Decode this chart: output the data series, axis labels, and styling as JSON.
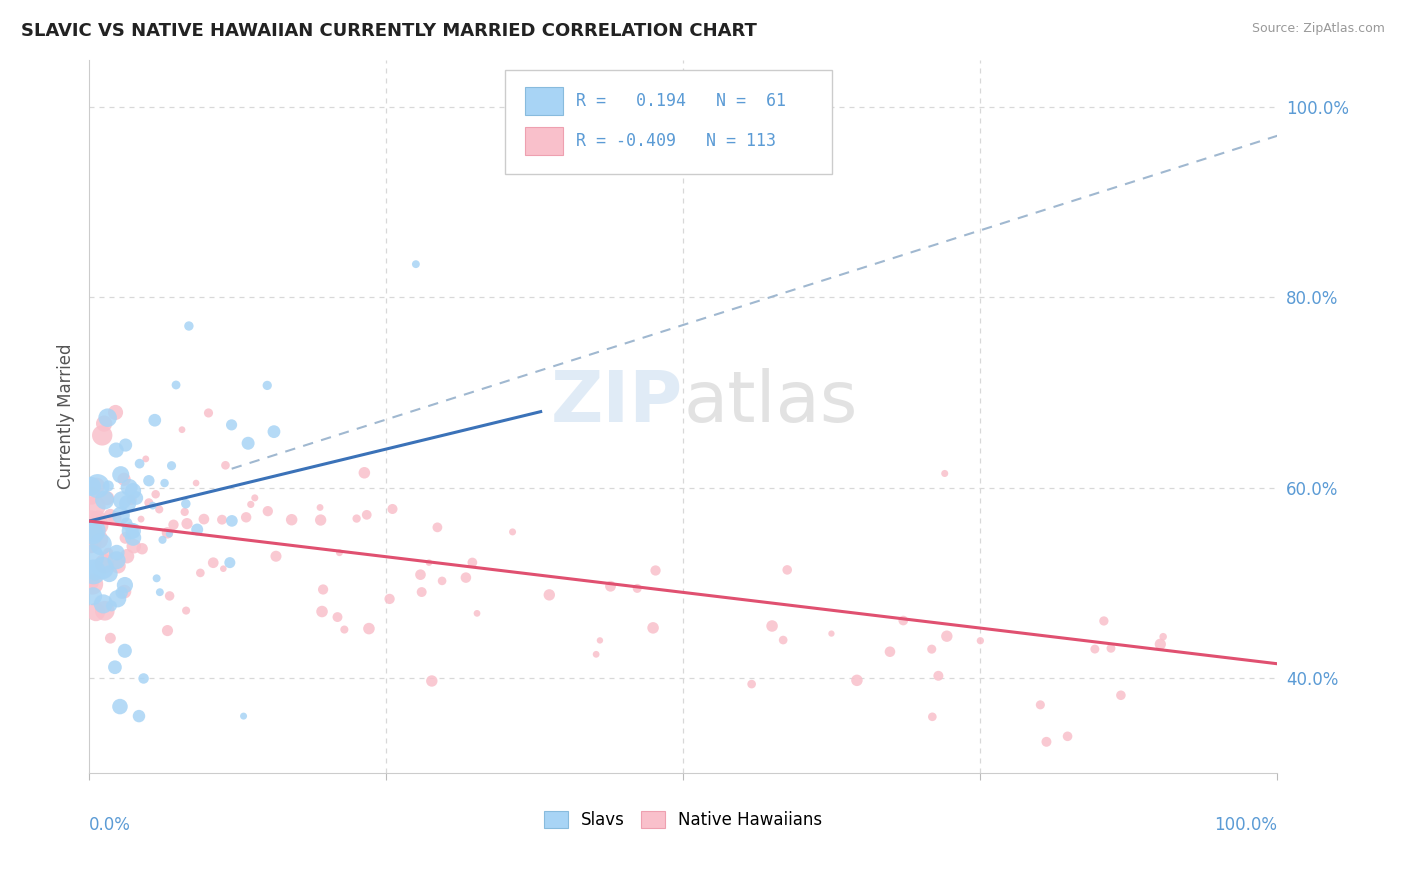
{
  "title": "SLAVIC VS NATIVE HAWAIIAN CURRENTLY MARRIED CORRELATION CHART",
  "source": "Source: ZipAtlas.com",
  "ylabel": "Currently Married",
  "r_slavic": 0.194,
  "n_slavic": 61,
  "r_hawaiian": -0.409,
  "n_hawaiian": 113,
  "color_slavic": "#A8D4F5",
  "color_slavic_edge": "#6EB0E8",
  "color_hawaiian": "#F9C0CB",
  "color_hawaiian_edge": "#F090A8",
  "trendline_slavic_color": "#3B72B8",
  "trendline_hawaiian_color": "#E05070",
  "trendline_dashed_color": "#A0B8D0",
  "background_color": "#FFFFFF",
  "grid_color": "#D8D8D8",
  "xlim": [
    0.0,
    1.0
  ],
  "ylim": [
    0.3,
    1.05
  ],
  "yticks": [
    0.4,
    0.6,
    0.8,
    1.0
  ],
  "ytick_labels": [
    "40.0%",
    "60.0%",
    "80.0%",
    "100.0%"
  ],
  "slavic_trendline_x0": 0.0,
  "slavic_trendline_y0": 0.565,
  "slavic_trendline_x1": 0.38,
  "slavic_trendline_y1": 0.68,
  "hawaiian_trendline_x0": 0.0,
  "hawaiian_trendline_y0": 0.565,
  "hawaiian_trendline_x1": 1.0,
  "hawaiian_trendline_y1": 0.415,
  "dashed_line_x0": 0.12,
  "dashed_line_y0": 0.62,
  "dashed_line_x1": 1.0,
  "dashed_line_y1": 0.97
}
